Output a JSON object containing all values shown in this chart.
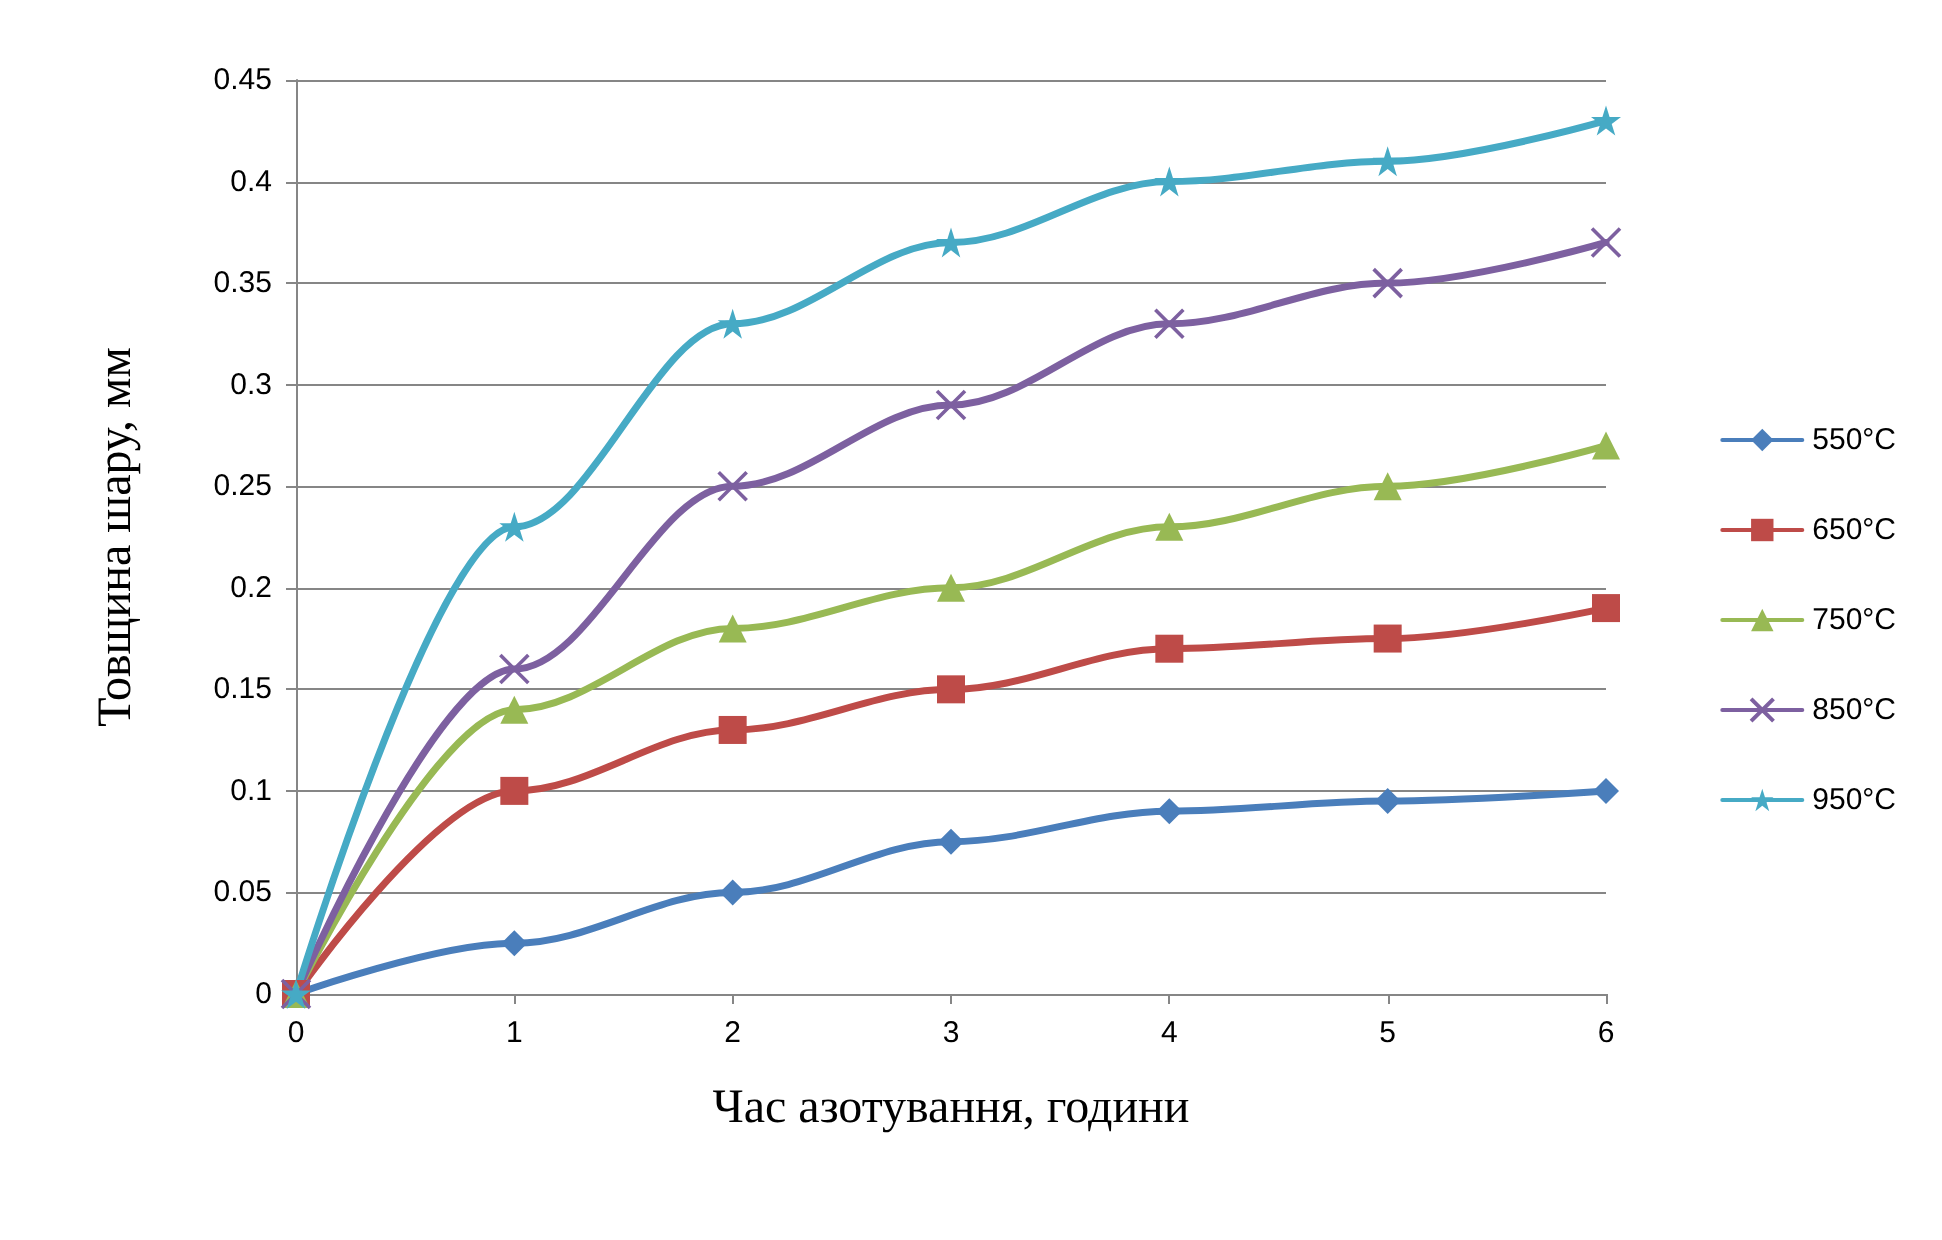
{
  "chart_data": {
    "type": "line",
    "xlabel": "Час азотування, години",
    "ylabel": "Товщина шару, мм",
    "x": [
      0,
      1,
      2,
      3,
      4,
      5,
      6
    ],
    "xlim": [
      0,
      6
    ],
    "xticks": [
      0,
      1,
      2,
      3,
      4,
      5,
      6
    ],
    "ylim": [
      0,
      0.45
    ],
    "yticks": [
      0,
      0.05,
      0.1,
      0.15,
      0.2,
      0.25,
      0.3,
      0.35,
      0.4,
      0.45
    ],
    "grid": "y",
    "legend": "right",
    "line_style": "solid",
    "series": [
      {
        "name": "550°C",
        "color": "#4a7ebb",
        "marker": "diamond",
        "values": [
          0,
          0.025,
          0.05,
          0.075,
          0.09,
          0.095,
          0.1
        ]
      },
      {
        "name": "650°C",
        "color": "#be4b48",
        "marker": "square",
        "values": [
          0,
          0.1,
          0.13,
          0.15,
          0.17,
          0.175,
          0.19
        ]
      },
      {
        "name": "750°C",
        "color": "#98b954",
        "marker": "triangle",
        "values": [
          0,
          0.14,
          0.18,
          0.2,
          0.23,
          0.25,
          0.27
        ]
      },
      {
        "name": "850°C",
        "color": "#7d60a0",
        "marker": "cross",
        "values": [
          0,
          0.16,
          0.25,
          0.29,
          0.33,
          0.35,
          0.37
        ]
      },
      {
        "name": "950°C",
        "color": "#46aac5",
        "marker": "star",
        "values": [
          0,
          0.23,
          0.33,
          0.37,
          0.4,
          0.41,
          0.43
        ]
      }
    ]
  }
}
